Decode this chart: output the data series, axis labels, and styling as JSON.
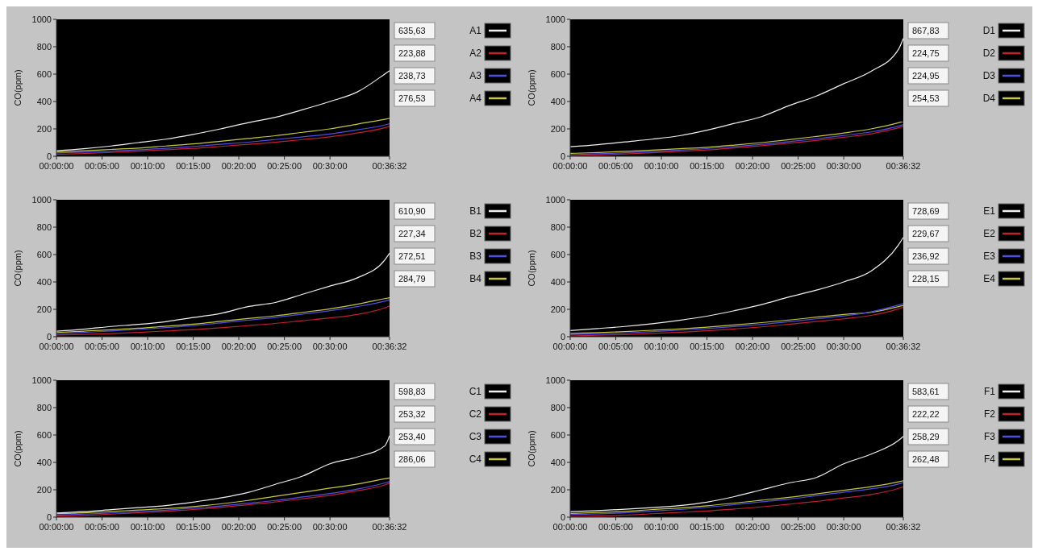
{
  "chart_data": [
    {
      "type": "line",
      "ylabel": "CO(ppm)",
      "legend": "right",
      "annotations": [
        "635,63",
        "223,88",
        "238,73",
        "276,53"
      ],
      "xlim": [
        0,
        0.6089
      ],
      "ylim": [
        0,
        1000
      ],
      "yticks": [
        0,
        200,
        400,
        600,
        800,
        1000
      ],
      "xticks": [
        {
          "value": 0,
          "label": "00:00:00"
        },
        {
          "value": 0.0833,
          "label": "00:05:00"
        },
        {
          "value": 0.1667,
          "label": "00:10:00"
        },
        {
          "value": 0.25,
          "label": "00:15:00"
        },
        {
          "value": 0.3333,
          "label": "00:20:00"
        },
        {
          "value": 0.4167,
          "label": "00:25:00"
        },
        {
          "value": 0.5,
          "label": "00:30:00"
        },
        {
          "value": 0.6089,
          "label": "00:36:32"
        }
      ],
      "x": [
        0,
        0.05,
        0.1,
        0.15,
        0.2,
        0.25,
        0.3,
        0.35,
        0.4,
        0.45,
        0.5,
        0.55,
        0.6,
        0.6089
      ],
      "series": [
        {
          "name": "A1",
          "color": "#f0f0f0",
          "values": [
            40,
            55,
            75,
            100,
            125,
            160,
            200,
            245,
            285,
            340,
            400,
            470,
            600,
            625
          ]
        },
        {
          "name": "A2",
          "color": "#c02030",
          "values": [
            15,
            20,
            28,
            38,
            48,
            58,
            72,
            87,
            102,
            122,
            142,
            170,
            208,
            218
          ]
        },
        {
          "name": "A3",
          "color": "#5050e0",
          "values": [
            24,
            30,
            38,
            48,
            58,
            72,
            87,
            103,
            122,
            142,
            163,
            193,
            228,
            238
          ]
        },
        {
          "name": "A4",
          "color": "#c8c840",
          "values": [
            32,
            40,
            50,
            60,
            75,
            90,
            110,
            130,
            150,
            175,
            200,
            235,
            270,
            277
          ]
        }
      ]
    },
    {
      "type": "line",
      "ylabel": "CO(ppm)",
      "legend": "right",
      "annotations": [
        "867,83",
        "224,75",
        "224,95",
        "254,53"
      ],
      "xlim": [
        0,
        0.6089
      ],
      "ylim": [
        0,
        1000
      ],
      "yticks": [
        0,
        200,
        400,
        600,
        800,
        1000
      ],
      "xticks": [
        {
          "value": 0,
          "label": "00:00:00"
        },
        {
          "value": 0.0833,
          "label": "00:05:00"
        },
        {
          "value": 0.1667,
          "label": "00:10:00"
        },
        {
          "value": 0.25,
          "label": "00:15:00"
        },
        {
          "value": 0.3333,
          "label": "00:20:00"
        },
        {
          "value": 0.4167,
          "label": "00:25:00"
        },
        {
          "value": 0.5,
          "label": "00:30:00"
        },
        {
          "value": 0.6089,
          "label": "00:36:32"
        }
      ],
      "x": [
        0,
        0.05,
        0.1,
        0.15,
        0.2,
        0.25,
        0.3,
        0.35,
        0.4,
        0.45,
        0.5,
        0.55,
        0.6,
        0.6089
      ],
      "series": [
        {
          "name": "D1",
          "color": "#f0f0f0",
          "values": [
            70,
            85,
            105,
            125,
            150,
            190,
            240,
            290,
            370,
            440,
            530,
            620,
            780,
            860
          ]
        },
        {
          "name": "D2",
          "color": "#c02030",
          "values": [
            4,
            9,
            17,
            26,
            36,
            46,
            61,
            77,
            96,
            116,
            139,
            164,
            208,
            218
          ]
        },
        {
          "name": "D3",
          "color": "#5050e0",
          "values": [
            12,
            18,
            26,
            35,
            45,
            56,
            71,
            87,
            107,
            128,
            152,
            178,
            220,
            230
          ]
        },
        {
          "name": "D4",
          "color": "#c8c840",
          "values": [
            21,
            27,
            36,
            45,
            55,
            66,
            82,
            100,
            121,
            145,
            170,
            200,
            245,
            255
          ]
        }
      ]
    },
    {
      "type": "line",
      "ylabel": "CO(ppm)",
      "legend": "right",
      "annotations": [
        "610,90",
        "227,34",
        "272,51",
        "284,79"
      ],
      "xlim": [
        0,
        0.6089
      ],
      "ylim": [
        0,
        1000
      ],
      "yticks": [
        0,
        200,
        400,
        600,
        800,
        1000
      ],
      "xticks": [
        {
          "value": 0,
          "label": "00:00:00"
        },
        {
          "value": 0.0833,
          "label": "00:05:00"
        },
        {
          "value": 0.1667,
          "label": "00:10:00"
        },
        {
          "value": 0.25,
          "label": "00:15:00"
        },
        {
          "value": 0.3333,
          "label": "00:20:00"
        },
        {
          "value": 0.4167,
          "label": "00:25:00"
        },
        {
          "value": 0.5,
          "label": "00:30:00"
        },
        {
          "value": 0.6089,
          "label": "00:36:32"
        }
      ],
      "x": [
        0,
        0.05,
        0.1,
        0.15,
        0.2,
        0.25,
        0.3,
        0.35,
        0.4,
        0.45,
        0.5,
        0.55,
        0.6,
        0.6089
      ],
      "series": [
        {
          "name": "B1",
          "color": "#f0f0f0",
          "values": [
            40,
            55,
            75,
            90,
            110,
            140,
            170,
            220,
            250,
            310,
            370,
            430,
            560,
            610
          ]
        },
        {
          "name": "B2",
          "color": "#c02030",
          "values": [
            12,
            17,
            23,
            32,
            42,
            52,
            66,
            81,
            97,
            117,
            137,
            163,
            210,
            225
          ]
        },
        {
          "name": "B3",
          "color": "#5050e0",
          "values": [
            22,
            32,
            42,
            53,
            67,
            82,
            101,
            121,
            141,
            165,
            190,
            220,
            260,
            270
          ]
        },
        {
          "name": "B4",
          "color": "#c8c840",
          "values": [
            31,
            41,
            51,
            62,
            77,
            92,
            112,
            133,
            153,
            178,
            204,
            238,
            278,
            285
          ]
        }
      ]
    },
    {
      "type": "line",
      "ylabel": "CO(ppm)",
      "legend": "right",
      "annotations": [
        "728,69",
        "229,67",
        "236,92",
        "228,15"
      ],
      "xlim": [
        0,
        0.6089
      ],
      "ylim": [
        0,
        1000
      ],
      "yticks": [
        0,
        200,
        400,
        600,
        800,
        1000
      ],
      "xticks": [
        {
          "value": 0,
          "label": "00:00:00"
        },
        {
          "value": 0.0833,
          "label": "00:05:00"
        },
        {
          "value": 0.1667,
          "label": "00:10:00"
        },
        {
          "value": 0.25,
          "label": "00:15:00"
        },
        {
          "value": 0.3333,
          "label": "00:20:00"
        },
        {
          "value": 0.4167,
          "label": "00:25:00"
        },
        {
          "value": 0.5,
          "label": "00:30:00"
        },
        {
          "value": 0.6089,
          "label": "00:36:32"
        }
      ],
      "x": [
        0,
        0.05,
        0.1,
        0.15,
        0.2,
        0.25,
        0.3,
        0.35,
        0.4,
        0.45,
        0.5,
        0.55,
        0.6,
        0.6089
      ],
      "series": [
        {
          "name": "E1",
          "color": "#f0f0f0",
          "values": [
            45,
            60,
            75,
            95,
            120,
            150,
            190,
            235,
            290,
            340,
            400,
            480,
            670,
            725
          ]
        },
        {
          "name": "E2",
          "color": "#c02030",
          "values": [
            6,
            11,
            16,
            24,
            33,
            43,
            57,
            72,
            91,
            111,
            131,
            156,
            204,
            216
          ]
        },
        {
          "name": "E3",
          "color": "#5050e0",
          "values": [
            15,
            21,
            28,
            37,
            47,
            59,
            74,
            90,
            110,
            131,
            152,
            182,
            232,
            242
          ]
        },
        {
          "name": "E4",
          "color": "#c8c840",
          "values": [
            24,
            30,
            38,
            47,
            57,
            70,
            86,
            103,
            122,
            143,
            163,
            178,
            220,
            229
          ]
        }
      ]
    },
    {
      "type": "line",
      "ylabel": "CO(ppm)",
      "legend": "right",
      "annotations": [
        "598,83",
        "253,32",
        "253,40",
        "286,06"
      ],
      "xlim": [
        0,
        0.6089
      ],
      "ylim": [
        0,
        1000
      ],
      "yticks": [
        0,
        200,
        400,
        600,
        800,
        1000
      ],
      "xticks": [
        {
          "value": 0,
          "label": "00:00:00"
        },
        {
          "value": 0.0833,
          "label": "00:05:00"
        },
        {
          "value": 0.1667,
          "label": "00:10:00"
        },
        {
          "value": 0.25,
          "label": "00:15:00"
        },
        {
          "value": 0.3333,
          "label": "00:20:00"
        },
        {
          "value": 0.4167,
          "label": "00:25:00"
        },
        {
          "value": 0.5,
          "label": "00:30:00"
        },
        {
          "value": 0.6089,
          "label": "00:36:32"
        }
      ],
      "x": [
        0,
        0.05,
        0.1,
        0.15,
        0.2,
        0.25,
        0.3,
        0.35,
        0.4,
        0.45,
        0.5,
        0.55,
        0.6,
        0.6089
      ],
      "series": [
        {
          "name": "C1",
          "color": "#f0f0f0",
          "values": [
            30,
            40,
            55,
            70,
            85,
            110,
            140,
            180,
            240,
            300,
            390,
            440,
            520,
            595
          ]
        },
        {
          "name": "C2",
          "color": "#c02030",
          "values": [
            8,
            13,
            22,
            32,
            42,
            56,
            71,
            91,
            111,
            135,
            160,
            193,
            235,
            248
          ]
        },
        {
          "name": "C3",
          "color": "#5050e0",
          "values": [
            16,
            22,
            31,
            41,
            51,
            66,
            82,
            102,
            122,
            148,
            173,
            205,
            250,
            260
          ]
        },
        {
          "name": "C4",
          "color": "#c8c840",
          "values": [
            25,
            32,
            42,
            52,
            62,
            77,
            97,
            122,
            152,
            182,
            212,
            242,
            280,
            286
          ]
        }
      ]
    },
    {
      "type": "line",
      "ylabel": "CO(ppm)",
      "legend": "right",
      "annotations": [
        "583,61",
        "222,22",
        "258,29",
        "262,48"
      ],
      "xlim": [
        0,
        0.6089
      ],
      "ylim": [
        0,
        1000
      ],
      "yticks": [
        0,
        200,
        400,
        600,
        800,
        1000
      ],
      "xticks": [
        {
          "value": 0,
          "label": "00:00:00"
        },
        {
          "value": 0.0833,
          "label": "00:05:00"
        },
        {
          "value": 0.1667,
          "label": "00:10:00"
        },
        {
          "value": 0.25,
          "label": "00:15:00"
        },
        {
          "value": 0.3333,
          "label": "00:20:00"
        },
        {
          "value": 0.4167,
          "label": "00:25:00"
        },
        {
          "value": 0.5,
          "label": "00:30:00"
        },
        {
          "value": 0.6089,
          "label": "00:36:32"
        }
      ],
      "x": [
        0,
        0.05,
        0.1,
        0.15,
        0.2,
        0.25,
        0.3,
        0.35,
        0.4,
        0.45,
        0.5,
        0.55,
        0.6,
        0.6089
      ],
      "series": [
        {
          "name": "F1",
          "color": "#f0f0f0",
          "values": [
            40,
            48,
            58,
            70,
            85,
            110,
            150,
            200,
            250,
            290,
            390,
            460,
            560,
            590
          ]
        },
        {
          "name": "F2",
          "color": "#c02030",
          "values": [
            5,
            10,
            15,
            25,
            35,
            45,
            60,
            75,
            95,
            115,
            140,
            165,
            210,
            222
          ]
        },
        {
          "name": "F3",
          "color": "#5050e0",
          "values": [
            18,
            24,
            32,
            45,
            56,
            72,
            92,
            112,
            132,
            157,
            182,
            207,
            242,
            252
          ]
        },
        {
          "name": "F4",
          "color": "#c8c840",
          "values": [
            27,
            34,
            42,
            56,
            67,
            83,
            103,
            124,
            145,
            170,
            196,
            223,
            258,
            266
          ]
        }
      ]
    }
  ]
}
